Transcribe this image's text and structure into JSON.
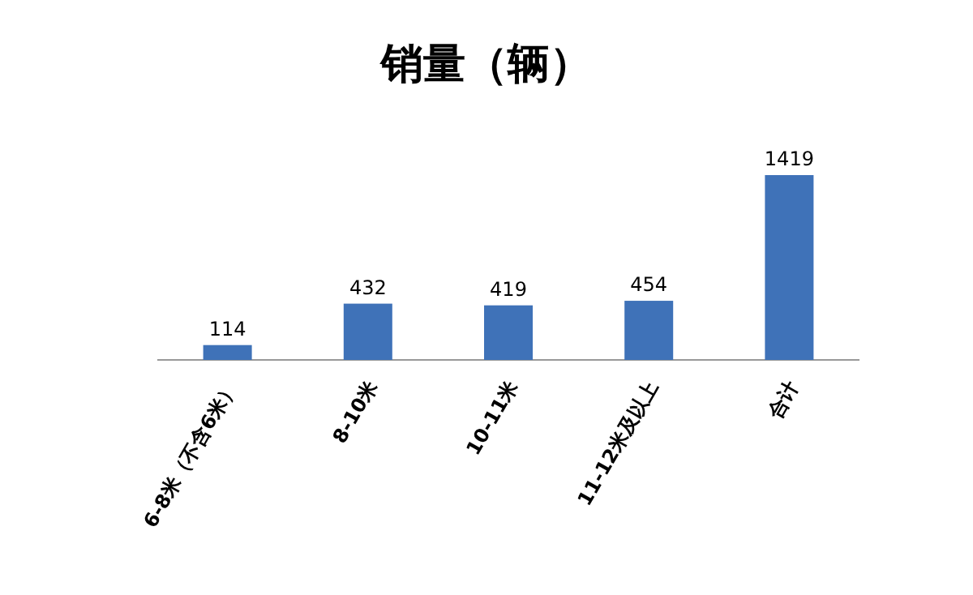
{
  "chart_data": {
    "type": "bar",
    "title": "销量（辆）",
    "categories": [
      "6-8米（不含6米）",
      "8-10米",
      "10-11米",
      "11-12米及以上",
      "合计"
    ],
    "values": [
      114,
      432,
      419,
      454,
      1419
    ],
    "color": "#3f72b8",
    "data_labels": true
  }
}
